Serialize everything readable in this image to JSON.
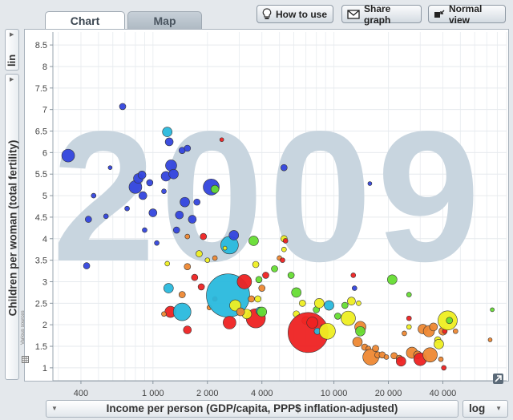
{
  "tabs": [
    {
      "label": "Chart",
      "active": true
    },
    {
      "label": "Map",
      "active": false
    }
  ],
  "toolbar": {
    "how_to_use": "How to use",
    "share_graph": "Share graph",
    "normal_view": "Normal view"
  },
  "y_scale": "lin",
  "x_scale": "log",
  "year_watermark": "2009",
  "sources_label": "Various sources",
  "chart_data": {
    "type": "scatter",
    "xlabel": "Income per person (GDP/capita, PPP$ inflation-adjusted)",
    "ylabel": "Children per woman (total fertility)",
    "x_scale": "log",
    "xlim": [
      280,
      90000
    ],
    "ylim": [
      0.7,
      8.8
    ],
    "x_ticks": [
      400,
      1000,
      2000,
      4000,
      10000,
      20000,
      40000
    ],
    "x_tick_labels": [
      "400",
      "1 000",
      "2 000",
      "4 000",
      "10 000",
      "20 000",
      "40 000"
    ],
    "y_ticks": [
      1,
      1.5,
      2,
      2.5,
      3,
      3.5,
      4,
      4.5,
      5,
      5.5,
      6,
      6.5,
      7,
      7.5,
      8,
      8.5
    ],
    "y_tick_labels": [
      "1",
      "1.5",
      "2",
      "2.5",
      "3",
      "3.5",
      "4",
      "4.5",
      "5",
      "5.5",
      "6",
      "6.5",
      "7",
      "7.5",
      "8",
      "8.5"
    ],
    "grid": true,
    "colors": {
      "blue": "#3344dd",
      "cyan": "#29b9dd",
      "red": "#ee2222",
      "orange": "#ee8833",
      "yellow": "#eeee22",
      "green": "#66dd33"
    },
    "points": [
      {
        "x": 340,
        "y": 5.93,
        "s": 8,
        "c": "blue"
      },
      {
        "x": 440,
        "y": 4.45,
        "s": 4,
        "c": "blue"
      },
      {
        "x": 430,
        "y": 3.37,
        "s": 4,
        "c": "blue"
      },
      {
        "x": 470,
        "y": 5.0,
        "s": 3,
        "c": "blue"
      },
      {
        "x": 550,
        "y": 4.52,
        "s": 3,
        "c": "blue"
      },
      {
        "x": 580,
        "y": 5.65,
        "s": 2.5,
        "c": "blue"
      },
      {
        "x": 680,
        "y": 7.07,
        "s": 4,
        "c": "blue"
      },
      {
        "x": 720,
        "y": 4.7,
        "s": 3,
        "c": "blue"
      },
      {
        "x": 800,
        "y": 5.2,
        "s": 8,
        "c": "blue"
      },
      {
        "x": 830,
        "y": 5.4,
        "s": 6,
        "c": "blue"
      },
      {
        "x": 870,
        "y": 5.48,
        "s": 5,
        "c": "blue"
      },
      {
        "x": 880,
        "y": 5.0,
        "s": 5,
        "c": "blue"
      },
      {
        "x": 900,
        "y": 4.2,
        "s": 3,
        "c": "blue"
      },
      {
        "x": 960,
        "y": 5.3,
        "s": 4,
        "c": "blue"
      },
      {
        "x": 1000,
        "y": 4.6,
        "s": 5,
        "c": "blue"
      },
      {
        "x": 1050,
        "y": 3.9,
        "s": 3,
        "c": "blue"
      },
      {
        "x": 1150,
        "y": 5.1,
        "s": 3,
        "c": "blue"
      },
      {
        "x": 1180,
        "y": 5.45,
        "s": 6,
        "c": "blue"
      },
      {
        "x": 1200,
        "y": 6.48,
        "s": 6,
        "c": "cyan"
      },
      {
        "x": 1230,
        "y": 6.25,
        "s": 5,
        "c": "blue"
      },
      {
        "x": 1260,
        "y": 5.7,
        "s": 7,
        "c": "blue"
      },
      {
        "x": 1300,
        "y": 5.5,
        "s": 6,
        "c": "blue"
      },
      {
        "x": 1350,
        "y": 4.2,
        "s": 4,
        "c": "blue"
      },
      {
        "x": 1400,
        "y": 4.55,
        "s": 5,
        "c": "blue"
      },
      {
        "x": 1450,
        "y": 6.05,
        "s": 4,
        "c": "blue"
      },
      {
        "x": 1500,
        "y": 4.85,
        "s": 6,
        "c": "blue"
      },
      {
        "x": 1550,
        "y": 6.1,
        "s": 4,
        "c": "blue"
      },
      {
        "x": 1650,
        "y": 4.45,
        "s": 5,
        "c": "blue"
      },
      {
        "x": 1750,
        "y": 4.85,
        "s": 4,
        "c": "blue"
      },
      {
        "x": 2100,
        "y": 5.2,
        "s": 10,
        "c": "blue"
      },
      {
        "x": 2200,
        "y": 5.15,
        "s": 5,
        "c": "green"
      },
      {
        "x": 2400,
        "y": 6.3,
        "s": 2.5,
        "c": "red"
      },
      {
        "x": 2650,
        "y": 3.85,
        "s": 11,
        "c": "cyan"
      },
      {
        "x": 2800,
        "y": 4.08,
        "s": 6,
        "c": "blue"
      },
      {
        "x": 2500,
        "y": 3.78,
        "s": 2.5,
        "c": "yellow"
      },
      {
        "x": 1550,
        "y": 4.05,
        "s": 3,
        "c": "orange"
      },
      {
        "x": 1900,
        "y": 4.05,
        "s": 4,
        "c": "red"
      },
      {
        "x": 2000,
        "y": 3.5,
        "s": 3,
        "c": "yellow"
      },
      {
        "x": 2200,
        "y": 3.55,
        "s": 3,
        "c": "orange"
      },
      {
        "x": 1800,
        "y": 3.65,
        "s": 4,
        "c": "yellow"
      },
      {
        "x": 1550,
        "y": 3.35,
        "s": 4,
        "c": "orange"
      },
      {
        "x": 1200,
        "y": 3.42,
        "s": 3,
        "c": "yellow"
      },
      {
        "x": 1220,
        "y": 2.85,
        "s": 6,
        "c": "cyan"
      },
      {
        "x": 1250,
        "y": 2.3,
        "s": 7,
        "c": "red"
      },
      {
        "x": 1150,
        "y": 2.25,
        "s": 3,
        "c": "orange"
      },
      {
        "x": 1450,
        "y": 2.3,
        "s": 11,
        "c": "cyan"
      },
      {
        "x": 1450,
        "y": 2.7,
        "s": 4,
        "c": "orange"
      },
      {
        "x": 1550,
        "y": 1.88,
        "s": 5,
        "c": "red"
      },
      {
        "x": 1700,
        "y": 3.1,
        "s": 4,
        "c": "red"
      },
      {
        "x": 1850,
        "y": 2.88,
        "s": 4,
        "c": "red"
      },
      {
        "x": 2050,
        "y": 2.4,
        "s": 3,
        "c": "orange"
      },
      {
        "x": 2200,
        "y": 2.6,
        "s": 3,
        "c": "red"
      },
      {
        "x": 2600,
        "y": 2.68,
        "s": 27,
        "c": "cyan"
      },
      {
        "x": 2650,
        "y": 2.05,
        "s": 8,
        "c": "red"
      },
      {
        "x": 2850,
        "y": 2.45,
        "s": 7,
        "c": "yellow"
      },
      {
        "x": 3200,
        "y": 3.0,
        "s": 9,
        "c": "red"
      },
      {
        "x": 3500,
        "y": 2.6,
        "s": 4,
        "c": "orange"
      },
      {
        "x": 3700,
        "y": 2.15,
        "s": 12,
        "c": "red"
      },
      {
        "x": 3300,
        "y": 2.25,
        "s": 6,
        "c": "yellow"
      },
      {
        "x": 3050,
        "y": 2.3,
        "s": 5,
        "c": "orange"
      },
      {
        "x": 3900,
        "y": 2.32,
        "s": 5,
        "c": "cyan"
      },
      {
        "x": 4000,
        "y": 2.3,
        "s": 6,
        "c": "green"
      },
      {
        "x": 3800,
        "y": 2.6,
        "s": 4,
        "c": "yellow"
      },
      {
        "x": 4000,
        "y": 2.85,
        "s": 4,
        "c": "orange"
      },
      {
        "x": 4200,
        "y": 3.15,
        "s": 4,
        "c": "red"
      },
      {
        "x": 3850,
        "y": 3.05,
        "s": 4,
        "c": "green"
      },
      {
        "x": 3700,
        "y": 3.4,
        "s": 4,
        "c": "yellow"
      },
      {
        "x": 3600,
        "y": 3.95,
        "s": 6,
        "c": "green"
      },
      {
        "x": 4700,
        "y": 3.3,
        "s": 4,
        "c": "green"
      },
      {
        "x": 5000,
        "y": 3.55,
        "s": 3,
        "c": "orange"
      },
      {
        "x": 5200,
        "y": 3.5,
        "s": 3,
        "c": "red"
      },
      {
        "x": 5300,
        "y": 3.75,
        "s": 3,
        "c": "yellow"
      },
      {
        "x": 5300,
        "y": 4.0,
        "s": 4,
        "c": "yellow"
      },
      {
        "x": 5400,
        "y": 3.95,
        "s": 3,
        "c": "red"
      },
      {
        "x": 5300,
        "y": 5.65,
        "s": 4,
        "c": "blue"
      },
      {
        "x": 5800,
        "y": 3.15,
        "s": 4,
        "c": "green"
      },
      {
        "x": 6200,
        "y": 2.75,
        "s": 6,
        "c": "green"
      },
      {
        "x": 6200,
        "y": 2.25,
        "s": 4,
        "c": "yellow"
      },
      {
        "x": 6700,
        "y": 2.5,
        "s": 4,
        "c": "yellow"
      },
      {
        "x": 7000,
        "y": 2.1,
        "s": 5,
        "c": "orange"
      },
      {
        "x": 7200,
        "y": 1.82,
        "s": 25,
        "c": "red"
      },
      {
        "x": 7600,
        "y": 2.05,
        "s": 7,
        "c": "red"
      },
      {
        "x": 8000,
        "y": 2.35,
        "s": 4,
        "c": "green"
      },
      {
        "x": 8100,
        "y": 1.85,
        "s": 4,
        "c": "cyan"
      },
      {
        "x": 8300,
        "y": 2.5,
        "s": 6,
        "c": "yellow"
      },
      {
        "x": 8700,
        "y": 1.95,
        "s": 3,
        "c": "red"
      },
      {
        "x": 9200,
        "y": 1.85,
        "s": 10,
        "c": "yellow"
      },
      {
        "x": 9400,
        "y": 2.45,
        "s": 6,
        "c": "cyan"
      },
      {
        "x": 10500,
        "y": 2.2,
        "s": 4,
        "c": "green"
      },
      {
        "x": 11500,
        "y": 2.45,
        "s": 4,
        "c": "green"
      },
      {
        "x": 12000,
        "y": 2.15,
        "s": 9,
        "c": "yellow"
      },
      {
        "x": 12500,
        "y": 2.55,
        "s": 5,
        "c": "yellow"
      },
      {
        "x": 13000,
        "y": 2.85,
        "s": 3,
        "c": "blue"
      },
      {
        "x": 12800,
        "y": 3.15,
        "s": 3,
        "c": "red"
      },
      {
        "x": 13500,
        "y": 1.6,
        "s": 6,
        "c": "orange"
      },
      {
        "x": 14000,
        "y": 1.95,
        "s": 7,
        "c": "orange"
      },
      {
        "x": 14000,
        "y": 1.85,
        "s": 6,
        "c": "green"
      },
      {
        "x": 14800,
        "y": 1.48,
        "s": 4,
        "c": "orange"
      },
      {
        "x": 13700,
        "y": 2.5,
        "s": 3,
        "c": "yellow"
      },
      {
        "x": 15500,
        "y": 1.45,
        "s": 3,
        "c": "orange"
      },
      {
        "x": 15800,
        "y": 5.28,
        "s": 2.5,
        "c": "blue"
      },
      {
        "x": 16000,
        "y": 1.25,
        "s": 10,
        "c": "orange"
      },
      {
        "x": 17500,
        "y": 1.3,
        "s": 4,
        "c": "orange"
      },
      {
        "x": 17000,
        "y": 1.45,
        "s": 4,
        "c": "orange"
      },
      {
        "x": 18500,
        "y": 1.3,
        "s": 4,
        "c": "orange"
      },
      {
        "x": 19500,
        "y": 1.25,
        "s": 3,
        "c": "orange"
      },
      {
        "x": 21000,
        "y": 3.05,
        "s": 6,
        "c": "green"
      },
      {
        "x": 21500,
        "y": 1.28,
        "s": 4,
        "c": "orange"
      },
      {
        "x": 23000,
        "y": 1.22,
        "s": 4,
        "c": "orange"
      },
      {
        "x": 23500,
        "y": 1.15,
        "s": 6,
        "c": "red"
      },
      {
        "x": 24500,
        "y": 1.8,
        "s": 3,
        "c": "orange"
      },
      {
        "x": 26000,
        "y": 1.95,
        "s": 3,
        "c": "yellow"
      },
      {
        "x": 26000,
        "y": 2.15,
        "s": 3,
        "c": "red"
      },
      {
        "x": 26000,
        "y": 2.7,
        "s": 3,
        "c": "green"
      },
      {
        "x": 27000,
        "y": 1.35,
        "s": 7,
        "c": "orange"
      },
      {
        "x": 29000,
        "y": 1.3,
        "s": 5,
        "c": "orange"
      },
      {
        "x": 30000,
        "y": 1.2,
        "s": 8,
        "c": "red"
      },
      {
        "x": 31000,
        "y": 1.9,
        "s": 6,
        "c": "orange"
      },
      {
        "x": 33500,
        "y": 1.85,
        "s": 7,
        "c": "orange"
      },
      {
        "x": 34000,
        "y": 1.3,
        "s": 9,
        "c": "orange"
      },
      {
        "x": 35500,
        "y": 1.95,
        "s": 5,
        "c": "orange"
      },
      {
        "x": 37500,
        "y": 1.65,
        "s": 4,
        "c": "yellow"
      },
      {
        "x": 38000,
        "y": 1.55,
        "s": 6,
        "c": "yellow"
      },
      {
        "x": 39000,
        "y": 1.2,
        "s": 3,
        "c": "orange"
      },
      {
        "x": 40000,
        "y": 1.85,
        "s": 5,
        "c": "orange"
      },
      {
        "x": 40500,
        "y": 1.0,
        "s": 3,
        "c": "red"
      },
      {
        "x": 41000,
        "y": 1.85,
        "s": 3,
        "c": "red"
      },
      {
        "x": 42500,
        "y": 2.1,
        "s": 12,
        "c": "yellow"
      },
      {
        "x": 43500,
        "y": 2.1,
        "s": 4,
        "c": "green"
      },
      {
        "x": 47000,
        "y": 1.85,
        "s": 3,
        "c": "orange"
      },
      {
        "x": 75000,
        "y": 2.35,
        "s": 2.5,
        "c": "green"
      },
      {
        "x": 73000,
        "y": 1.65,
        "s": 2.5,
        "c": "orange"
      }
    ]
  }
}
